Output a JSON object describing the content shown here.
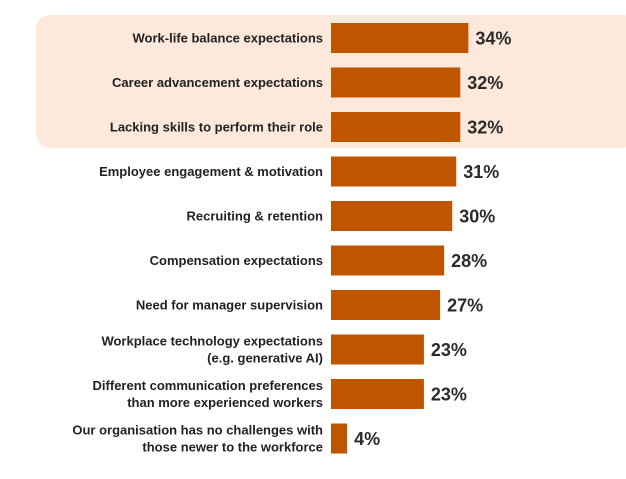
{
  "chart_data": {
    "type": "bar",
    "orientation": "horizontal",
    "categories": [
      [
        "Work-life balance expectations"
      ],
      [
        "Career advancement expectations"
      ],
      [
        "Lacking skills to perform their role"
      ],
      [
        "Employee engagement & motivation"
      ],
      [
        "Recruiting & retention"
      ],
      [
        "Compensation expectations"
      ],
      [
        "Need for manager supervision"
      ],
      [
        "Workplace technology expectations",
        "(e.g. generative AI)"
      ],
      [
        "Different communication preferences",
        "than more experienced workers"
      ],
      [
        "Our organisation has no challenges with",
        "those newer to the workforce"
      ]
    ],
    "values": [
      34,
      32,
      32,
      31,
      30,
      28,
      27,
      23,
      23,
      4
    ],
    "value_labels": [
      "34%",
      "32%",
      "32%",
      "31%",
      "30%",
      "28%",
      "27%",
      "23%",
      "23%",
      "4%"
    ],
    "highlighted_categories": [
      0,
      1,
      2
    ],
    "colors": {
      "bar": "#c05500",
      "highlight": "#fde9dc"
    },
    "xlim": [
      0,
      100
    ],
    "grid": false,
    "title": "",
    "xlabel": "",
    "ylabel": ""
  }
}
